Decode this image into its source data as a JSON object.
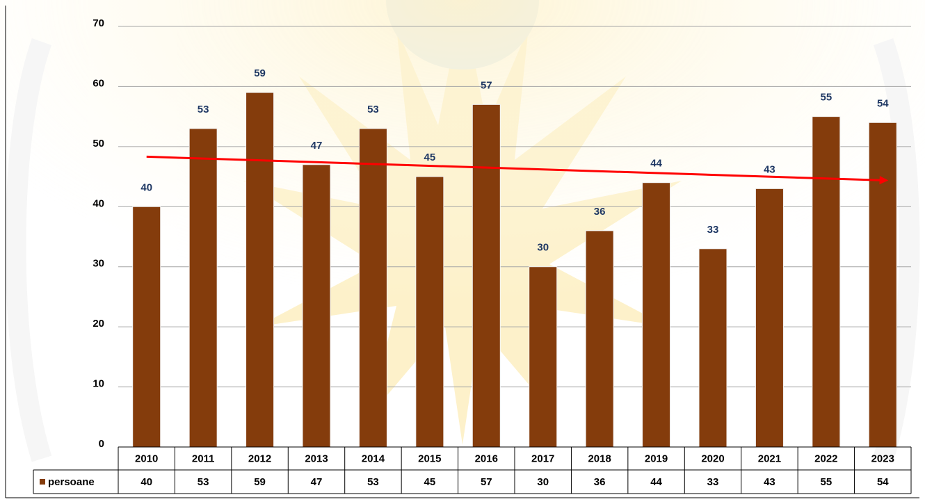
{
  "chart_data": {
    "type": "bar",
    "categories": [
      "2010",
      "2011",
      "2012",
      "2013",
      "2014",
      "2015",
      "2016",
      "2017",
      "2018",
      "2019",
      "2020",
      "2021",
      "2022",
      "2023"
    ],
    "series": [
      {
        "name": "persoane",
        "color": "#843c0c",
        "values": [
          40,
          53,
          59,
          47,
          53,
          45,
          57,
          30,
          36,
          44,
          33,
          43,
          55,
          54
        ]
      }
    ],
    "ylim": [
      0,
      70
    ],
    "yticks": [
      0,
      10,
      20,
      30,
      40,
      50,
      60,
      70
    ],
    "grid": true,
    "data_labels": true,
    "label_color": "#1f3864",
    "data_table": true,
    "trendline": true,
    "trendline_color": "#ff0000"
  }
}
